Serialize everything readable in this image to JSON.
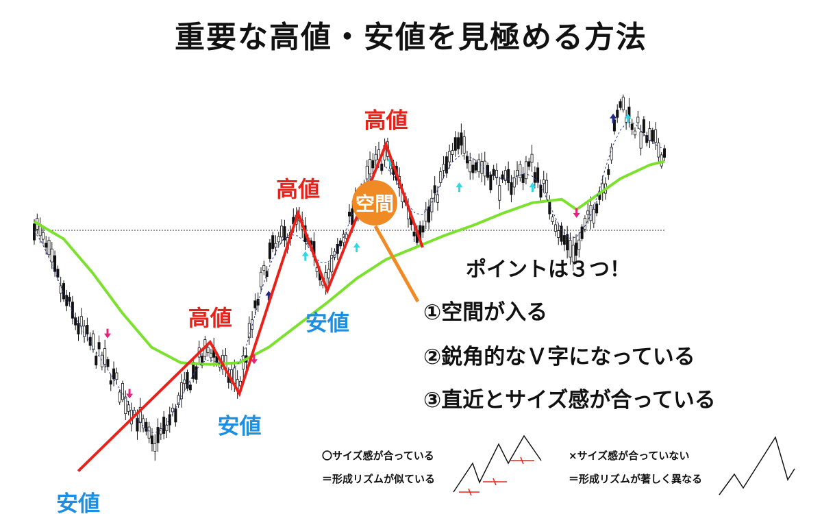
{
  "title": "重要な高値・安値を見極める方法",
  "chart_data": {
    "type": "candlestick-annotated",
    "title": "重要な高値・安値を見極める方法",
    "swing_points": [
      {
        "label": "高値",
        "x": 12,
        "y": 0.45
      },
      {
        "label": "安値",
        "x": 14,
        "y": 0.15
      },
      {
        "label": "高値",
        "x": 18,
        "y": 1.2
      },
      {
        "label": "安値",
        "x": 20,
        "y": 0.75
      },
      {
        "label": "高値",
        "x": 24,
        "y": 1.6
      },
      {
        "label": "安値",
        "x": 3,
        "y": -0.3
      }
    ],
    "gap_label": "空間",
    "zigzag": [
      {
        "x": 3,
        "y": -0.3
      },
      {
        "x": 12,
        "y": 0.45
      },
      {
        "x": 14,
        "y": 0.15
      },
      {
        "x": 18,
        "y": 1.2
      },
      {
        "x": 20,
        "y": 0.75
      },
      {
        "x": 24,
        "y": 1.6
      },
      {
        "x": 26.5,
        "y": 1.0
      }
    ],
    "moving_average": [
      {
        "x": 0,
        "y": 1.15
      },
      {
        "x": 2,
        "y": 1.05
      },
      {
        "x": 4,
        "y": 0.85
      },
      {
        "x": 6,
        "y": 0.62
      },
      {
        "x": 8,
        "y": 0.42
      },
      {
        "x": 10,
        "y": 0.33
      },
      {
        "x": 12,
        "y": 0.32
      },
      {
        "x": 14,
        "y": 0.33
      },
      {
        "x": 16,
        "y": 0.42
      },
      {
        "x": 18,
        "y": 0.55
      },
      {
        "x": 20,
        "y": 0.68
      },
      {
        "x": 22,
        "y": 0.82
      },
      {
        "x": 24,
        "y": 0.93
      },
      {
        "x": 26,
        "y": 1.0
      },
      {
        "x": 28,
        "y": 1.07
      },
      {
        "x": 30,
        "y": 1.13
      },
      {
        "x": 32,
        "y": 1.2
      },
      {
        "x": 34,
        "y": 1.26
      },
      {
        "x": 36,
        "y": 1.28
      },
      {
        "x": 37,
        "y": 1.22
      },
      {
        "x": 38,
        "y": 1.28
      },
      {
        "x": 40,
        "y": 1.4
      },
      {
        "x": 42,
        "y": 1.48
      },
      {
        "x": 43,
        "y": 1.5
      }
    ],
    "reference_level": 1.1,
    "price_path": [
      {
        "x": 0,
        "y": 1.15
      },
      {
        "x": 1,
        "y": 0.95
      },
      {
        "x": 2,
        "y": 0.72
      },
      {
        "x": 3,
        "y": 0.55
      },
      {
        "x": 4,
        "y": 0.42
      },
      {
        "x": 5,
        "y": 0.3
      },
      {
        "x": 6,
        "y": 0.15
      },
      {
        "x": 7,
        "y": 0.02
      },
      {
        "x": 8,
        "y": -0.15
      },
      {
        "x": 9,
        "y": -0.05
      },
      {
        "x": 10,
        "y": 0.12
      },
      {
        "x": 11,
        "y": 0.3
      },
      {
        "x": 12,
        "y": 0.42
      },
      {
        "x": 13,
        "y": 0.28
      },
      {
        "x": 14,
        "y": 0.2
      },
      {
        "x": 15,
        "y": 0.6
      },
      {
        "x": 16,
        "y": 0.95
      },
      {
        "x": 17,
        "y": 1.05
      },
      {
        "x": 18,
        "y": 1.15
      },
      {
        "x": 19,
        "y": 0.95
      },
      {
        "x": 20,
        "y": 0.8
      },
      {
        "x": 21,
        "y": 1.05
      },
      {
        "x": 22,
        "y": 1.25
      },
      {
        "x": 23,
        "y": 1.45
      },
      {
        "x": 24,
        "y": 1.55
      },
      {
        "x": 25,
        "y": 1.35
      },
      {
        "x": 26,
        "y": 1.1
      },
      {
        "x": 27,
        "y": 1.2
      },
      {
        "x": 28,
        "y": 1.45
      },
      {
        "x": 29,
        "y": 1.6
      },
      {
        "x": 30,
        "y": 1.5
      },
      {
        "x": 31,
        "y": 1.45
      },
      {
        "x": 32,
        "y": 1.35
      },
      {
        "x": 33,
        "y": 1.42
      },
      {
        "x": 34,
        "y": 1.48
      },
      {
        "x": 35,
        "y": 1.3
      },
      {
        "x": 36,
        "y": 1.05
      },
      {
        "x": 37,
        "y": 0.98
      },
      {
        "x": 38,
        "y": 1.2
      },
      {
        "x": 39,
        "y": 1.4
      },
      {
        "x": 40,
        "y": 1.85
      },
      {
        "x": 41,
        "y": 1.7
      },
      {
        "x": 42,
        "y": 1.62
      },
      {
        "x": 43,
        "y": 1.55
      }
    ],
    "signals": [
      {
        "dir": "down",
        "color": "#e6227c",
        "x": 5,
        "y": 0.5
      },
      {
        "dir": "down",
        "color": "#e6227c",
        "x": 6.5,
        "y": 0.15
      },
      {
        "dir": "down",
        "color": "#e6227c",
        "x": 15,
        "y": 0.35
      },
      {
        "dir": "up",
        "color": "#1c2a8a",
        "x": 16,
        "y": 0.72
      },
      {
        "dir": "up",
        "color": "#30d6e6",
        "x": 18.5,
        "y": 0.95
      },
      {
        "dir": "up",
        "color": "#30d6e6",
        "x": 22,
        "y": 1.0
      },
      {
        "dir": "up",
        "color": "#30d6e6",
        "x": 24.3,
        "y": 1.5
      },
      {
        "dir": "up",
        "color": "#30d6e6",
        "x": 29,
        "y": 1.35
      },
      {
        "dir": "up",
        "color": "#30d6e6",
        "x": 34,
        "y": 1.35
      },
      {
        "dir": "down",
        "color": "#e6227c",
        "x": 37,
        "y": 1.2
      },
      {
        "dir": "up",
        "color": "#1c2a8a",
        "x": 39.5,
        "y": 1.75
      },
      {
        "dir": "up",
        "color": "#30d6e6",
        "x": 40.5,
        "y": 1.75
      }
    ],
    "xlim": [
      0,
      43
    ],
    "ylim": [
      -0.35,
      2.0
    ]
  },
  "points": {
    "heading": "ポイントは３つ！",
    "items": [
      "①空間が入る",
      "②鋭角的なＶ字になっている",
      "③直近とサイズ感が合っている"
    ]
  },
  "notes": {
    "good_1": "〇サイズ感が合っている",
    "good_2": "＝形成リズムが似ている",
    "bad_1": "×サイズ感が合っていない",
    "bad_2": "＝形成リズムが著しく異なる"
  },
  "colors": {
    "high": "#e8221b",
    "low": "#1e8fe0",
    "ma": "#7be12e",
    "zigzag": "#e8221b",
    "gap": "#f08a24"
  }
}
